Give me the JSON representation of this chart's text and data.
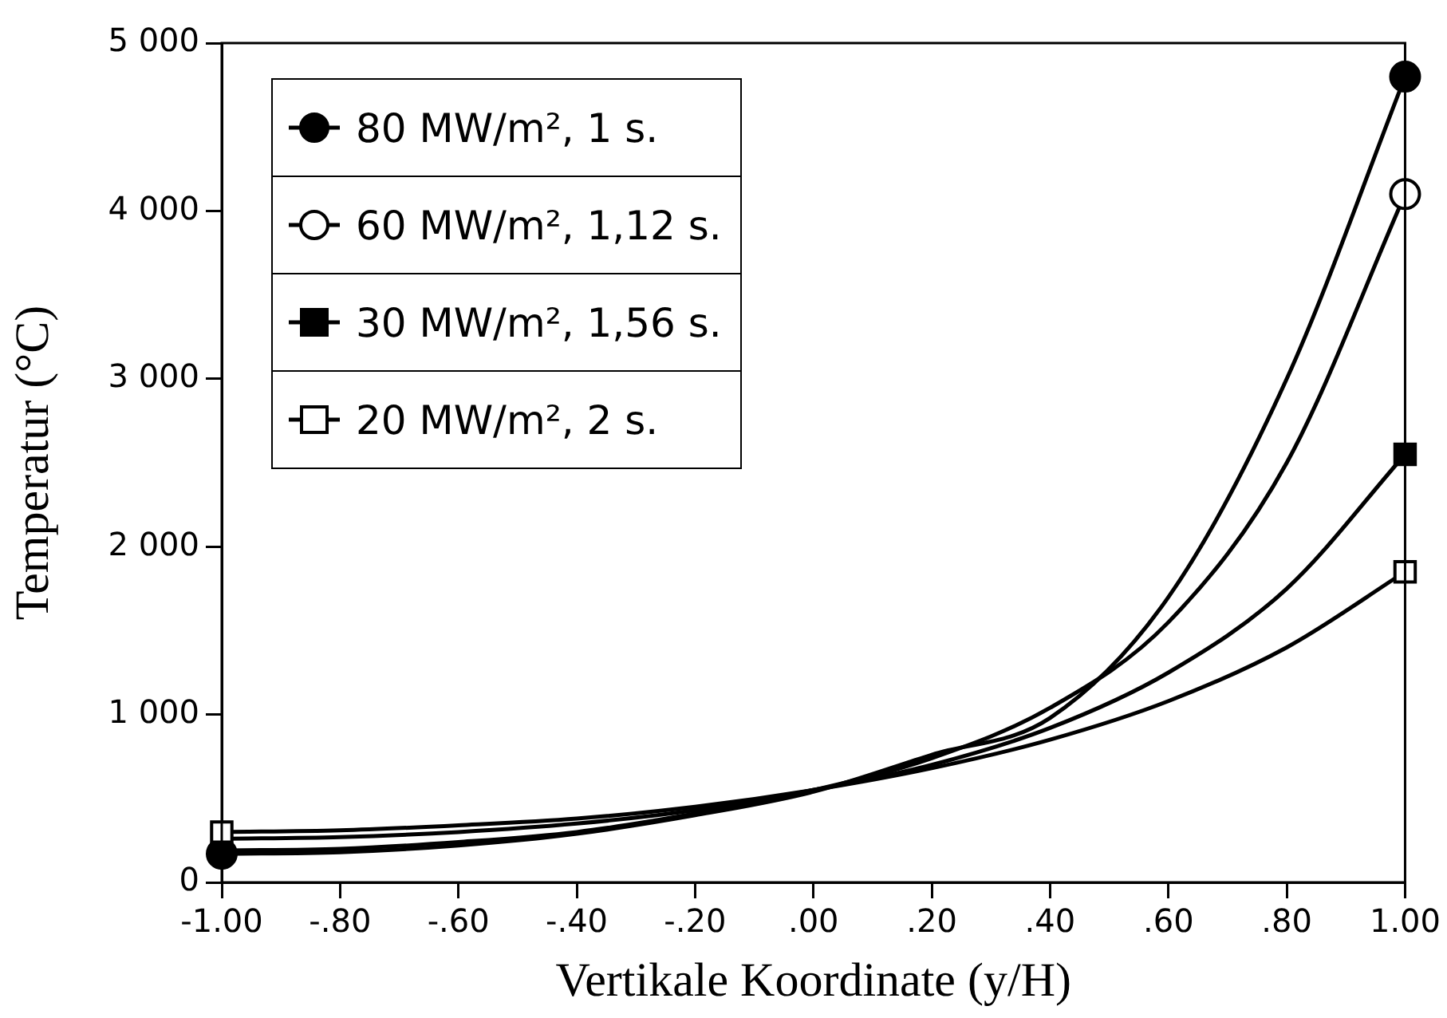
{
  "chart_data": {
    "type": "line",
    "xlabel": "Vertikale Koordinate (y/H)",
    "ylabel": "Temperatur (°C)",
    "x": [
      -1,
      -0.8,
      -0.6,
      -0.4,
      -0.2,
      0,
      0.2,
      0.4,
      0.6,
      0.8,
      1
    ],
    "series": [
      {
        "name": "80 MW/m², 1 s.",
        "color": "#000000",
        "marker": "none",
        "values": [
          170,
          180,
          220,
          290,
          400,
          540,
          760,
          980,
          1700,
          3000,
          4800
        ]
      },
      {
        "name": "60 MW/m², 1,12 s.",
        "color": "#000000",
        "marker": "none",
        "values": [
          190,
          200,
          240,
          300,
          410,
          550,
          740,
          1040,
          1550,
          2500,
          4100
        ]
      },
      {
        "name": "30 MW/m², 1,56 s.",
        "color": "#000000",
        "marker": "none",
        "values": [
          260,
          270,
          300,
          350,
          430,
          550,
          700,
          920,
          1250,
          1750,
          2550
        ]
      },
      {
        "name": "20 MW/m², 2 s.",
        "color": "#000000",
        "marker": "none",
        "values": [
          300,
          310,
          340,
          380,
          450,
          550,
          680,
          850,
          1080,
          1400,
          1850
        ]
      },
      {
        "type": "scatter",
        "color": "#000000",
        "marker": "circle",
        "values": [
          170,
          null,
          null,
          null,
          null,
          null,
          null,
          null,
          null,
          null,
          4800
        ]
      },
      {
        "type": "scatter",
        "color": "#ffffff",
        "marker": "circle",
        "values": [
          null,
          null,
          null,
          null,
          null,
          null,
          null,
          null,
          null,
          null,
          4100
        ]
      },
      {
        "type": "scatter",
        "color": "#000000",
        "marker": "square",
        "values": [
          null,
          null,
          null,
          null,
          null,
          null,
          null,
          null,
          null,
          null,
          2550
        ]
      },
      {
        "type": "scatter",
        "color": "#ffffff",
        "marker": "square",
        "values": [
          300,
          null,
          null,
          null,
          null,
          null,
          null,
          null,
          null,
          null,
          1850
        ]
      }
    ],
    "xlim": [
      -1,
      1
    ],
    "xticks": [
      {
        "value": -1,
        "label": "-1.00"
      },
      {
        "value": -0.8,
        "label": "-.80"
      },
      {
        "value": -0.6,
        "label": "-.60"
      },
      {
        "value": -0.4,
        "label": "-.40"
      },
      {
        "value": -0.2,
        "label": "-.20"
      },
      {
        "value": 0,
        "label": ".00"
      },
      {
        "value": 0.2,
        "label": ".20"
      },
      {
        "value": 0.4,
        "label": ".40"
      },
      {
        "value": 0.6,
        "label": ".60"
      },
      {
        "value": 0.8,
        "label": ".80"
      },
      {
        "value": 1,
        "label": "1.00"
      }
    ],
    "ylim": [
      0,
      5000
    ],
    "yticks": [
      0,
      {
        "value": 1000,
        "label": "1 000"
      },
      {
        "value": 2000,
        "label": "2 000"
      },
      {
        "value": 3000,
        "label": "3 000"
      },
      {
        "value": 4000,
        "label": "4 000"
      },
      {
        "value": 5000,
        "label": "5 000"
      }
    ],
    "grid": false,
    "legend": "top left"
  }
}
